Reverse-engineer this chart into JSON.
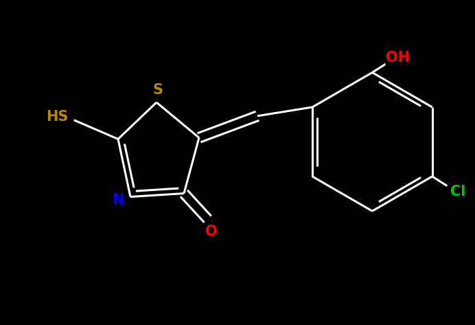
{
  "background_color": "#000000",
  "bond_color": "#ffffff",
  "label_colors": {
    "S": "#b8860b",
    "N": "#0000ff",
    "O": "#ff0000",
    "Cl": "#00cc00",
    "OH": "#ff0000",
    "HS": "#b8860b"
  },
  "figsize": [
    6.92,
    4.73
  ],
  "dpi": 100
}
